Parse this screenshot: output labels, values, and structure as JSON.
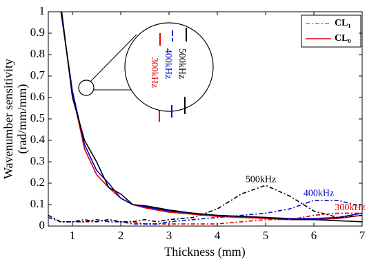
{
  "chart_data": {
    "type": "line",
    "xlabel": "Thickness (mm)",
    "ylabel": [
      "Wavenumber sensitivity",
      "(rad/mm/mm)"
    ],
    "xlim": [
      0.5,
      7
    ],
    "xticks": [
      1,
      2,
      3,
      4,
      5,
      6,
      7
    ],
    "ylim": [
      0,
      1
    ],
    "yticks": [
      0,
      0.1,
      0.2,
      0.3,
      0.4,
      0.5,
      0.6,
      0.7,
      0.8,
      0.9,
      1
    ],
    "x": [
      0.5,
      0.75,
      1,
      1.25,
      1.5,
      1.75,
      2,
      2.25,
      2.5,
      2.75,
      3,
      3.5,
      4,
      4.5,
      5,
      5.5,
      6,
      6.5,
      7
    ],
    "series": [
      {
        "color": "#e00000",
        "dash": false,
        "values": [
          1.6,
          1.02,
          0.62,
          0.36,
          0.24,
          0.18,
          0.13,
          0.1,
          0.085,
          0.075,
          0.065,
          0.055,
          0.045,
          0.04,
          0.035,
          0.03,
          0.03,
          0.035,
          0.05
        ]
      },
      {
        "color": "#0000d0",
        "dash": false,
        "values": [
          1.6,
          1.02,
          0.63,
          0.38,
          0.26,
          0.2,
          0.13,
          0.1,
          0.09,
          0.08,
          0.07,
          0.06,
          0.05,
          0.045,
          0.04,
          0.035,
          0.035,
          0.04,
          0.06
        ]
      },
      {
        "color": "#000000",
        "dash": false,
        "values": [
          1.6,
          1.05,
          0.6,
          0.4,
          0.3,
          0.18,
          0.15,
          0.1,
          0.095,
          0.085,
          0.075,
          0.06,
          0.05,
          0.045,
          0.04,
          0.03,
          0.03,
          0.025,
          0.02
        ]
      },
      {
        "color": "#e00000",
        "dash": true,
        "values": [
          0.05,
          0.02,
          0.02,
          0.02,
          0.02,
          0.03,
          0.02,
          0.02,
          0.01,
          0.01,
          0.01,
          0.01,
          0.01,
          0.02,
          0.03,
          0.03,
          0.05,
          0.06,
          0.06
        ]
      },
      {
        "color": "#0000d0",
        "dash": true,
        "values": [
          0.04,
          0.02,
          0.02,
          0.02,
          0.03,
          0.02,
          0.02,
          0.01,
          0.01,
          0.01,
          0.02,
          0.03,
          0.04,
          0.05,
          0.06,
          0.08,
          0.12,
          0.12,
          0.09
        ]
      },
      {
        "color": "#000000",
        "dash": true,
        "values": [
          0.05,
          0.02,
          0.02,
          0.03,
          0.02,
          0.03,
          0.02,
          0.02,
          0.03,
          0.02,
          0.03,
          0.04,
          0.08,
          0.15,
          0.19,
          0.14,
          0.07,
          0.04,
          0.05
        ]
      }
    ],
    "annotations": [
      {
        "text": "500kHz",
        "x": 4.9,
        "y": 0.215,
        "color": "#000000"
      },
      {
        "text": "400kHz",
        "x": 6.1,
        "y": 0.15,
        "color": "#0000d0"
      },
      {
        "text": "300kHz",
        "x": 6.75,
        "y": 0.085,
        "color": "#e00000"
      }
    ],
    "inset_labels": [
      {
        "text": "300kHz",
        "color": "#e00000"
      },
      {
        "text": "400kHz",
        "color": "#0000d0"
      },
      {
        "text": "500kHz",
        "color": "#000000"
      }
    ],
    "legend": [
      {
        "name": "CL₁",
        "color": "#d05a8a",
        "dash": true
      },
      {
        "name": "CL₀",
        "color": "#e00000",
        "dash": false
      }
    ]
  }
}
